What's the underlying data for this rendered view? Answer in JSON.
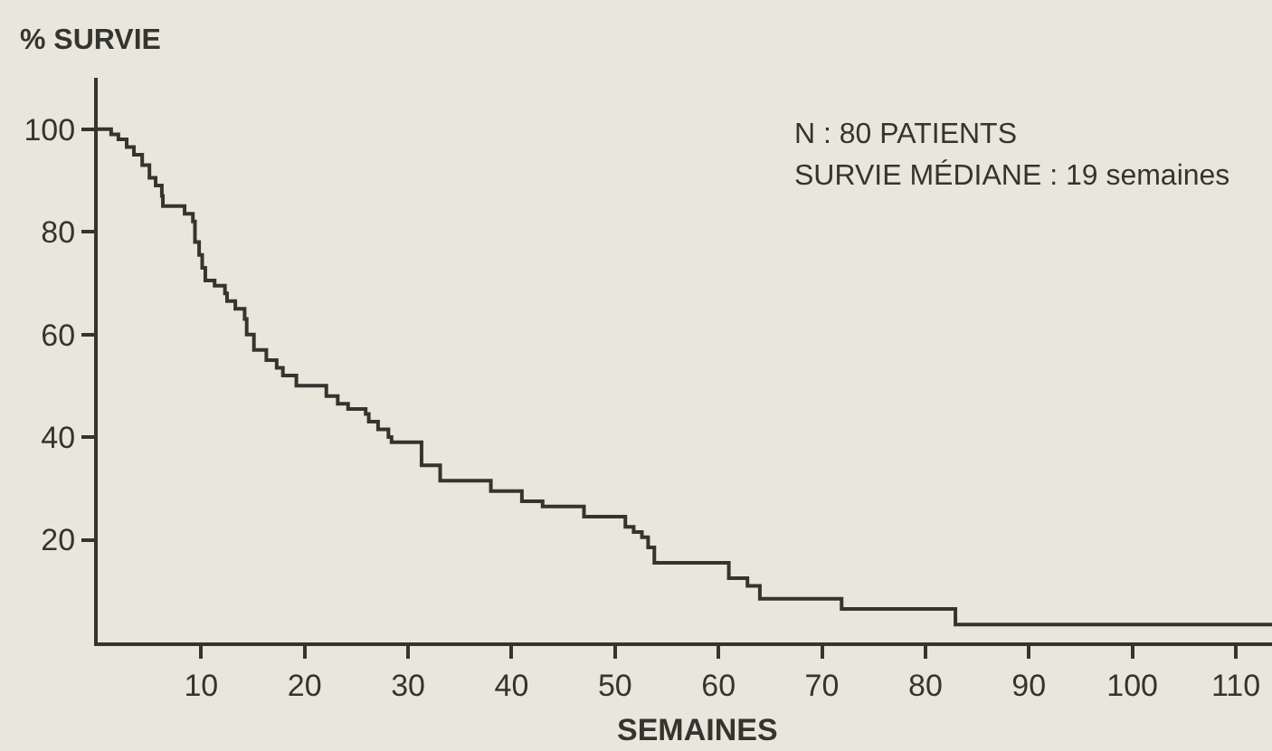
{
  "chart_data": {
    "type": "step",
    "ylabel": "% SURVIE",
    "xlabel": "SEMAINES",
    "annotations": [
      "N : 80 PATIENTS",
      "SURVIE MÉDIANE : 19 semaines"
    ],
    "x": [
      0,
      1.3,
      2,
      2.8,
      3.5,
      4.3,
      5,
      5.6,
      6.2,
      6.3,
      8.4,
      9.2,
      9.4,
      9.8,
      10.1,
      10.4,
      11.3,
      12.3,
      12.5,
      13.3,
      14.2,
      14.4,
      15.1,
      16.3,
      17.3,
      17.9,
      19.2,
      22.1,
      23.2,
      24.2,
      25.9,
      26.2,
      27.1,
      28.1,
      28.4,
      31.3,
      33.1,
      38,
      41,
      43,
      47,
      51,
      51.8,
      52.6,
      53.2,
      53.8,
      61,
      62.8,
      64,
      71.9,
      82.9,
      113.5
    ],
    "values": [
      100,
      99,
      98,
      96.5,
      95,
      93,
      90.5,
      89,
      87,
      85,
      83.5,
      82,
      78,
      75.5,
      73,
      70.5,
      69.5,
      68,
      66.5,
      65,
      63,
      60,
      57,
      55,
      53.5,
      52,
      50,
      48,
      46.5,
      45.5,
      44.5,
      43,
      41.5,
      40,
      39,
      34.5,
      31.5,
      29.5,
      27.5,
      26.5,
      24.5,
      22.5,
      21.5,
      20.5,
      18.5,
      15.5,
      12.5,
      11,
      8.5,
      6.5,
      3.5,
      3.5
    ],
    "color": "#35352f",
    "xlim": [
      0,
      113.5
    ],
    "ylim": [
      0,
      110
    ],
    "xticks": [
      10,
      20,
      30,
      40,
      50,
      60,
      70,
      80,
      90,
      100,
      110
    ],
    "yticks": [
      20,
      40,
      60,
      80,
      100
    ],
    "grid": false,
    "marker": "none",
    "line_style": "solid"
  }
}
